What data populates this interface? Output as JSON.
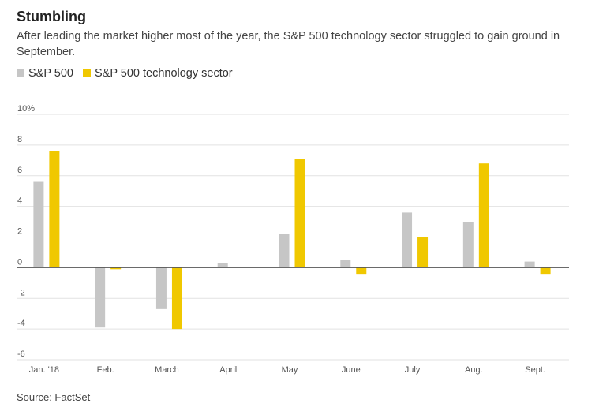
{
  "header": {
    "title": "Stumbling",
    "subtitle": "After leading the market higher most of the year, the S&P 500 technology sector struggled to gain ground in September."
  },
  "footer": {
    "source": "Source: FactSet"
  },
  "colors": {
    "sp500": "#c6c6c6",
    "tech": "#f0c800",
    "grid": "#e2e2e2",
    "zero": "#555555"
  },
  "chart_data": {
    "type": "bar",
    "title": "Stumbling",
    "categories": [
      "Jan. '18",
      "Feb.",
      "March",
      "April",
      "May",
      "June",
      "July",
      "Aug.",
      "Sept."
    ],
    "series": [
      {
        "name": "S&P 500",
        "values": [
          5.6,
          -3.9,
          -2.7,
          0.3,
          2.2,
          0.5,
          3.6,
          3.0,
          0.4
        ]
      },
      {
        "name": "S&P 500 technology sector",
        "values": [
          7.6,
          -0.1,
          -4.0,
          0.0,
          7.1,
          -0.4,
          2.0,
          6.8,
          -0.4
        ]
      }
    ],
    "ylim": [
      -6,
      10
    ],
    "yticks": [
      "10%",
      "8",
      "6",
      "4",
      "2",
      "0",
      "-2",
      "-4",
      "-6"
    ],
    "ytick_values": [
      10,
      8,
      6,
      4,
      2,
      0,
      -2,
      -4,
      -6
    ],
    "xlabel": "",
    "ylabel": "",
    "grid": true,
    "legend": "top-left"
  }
}
